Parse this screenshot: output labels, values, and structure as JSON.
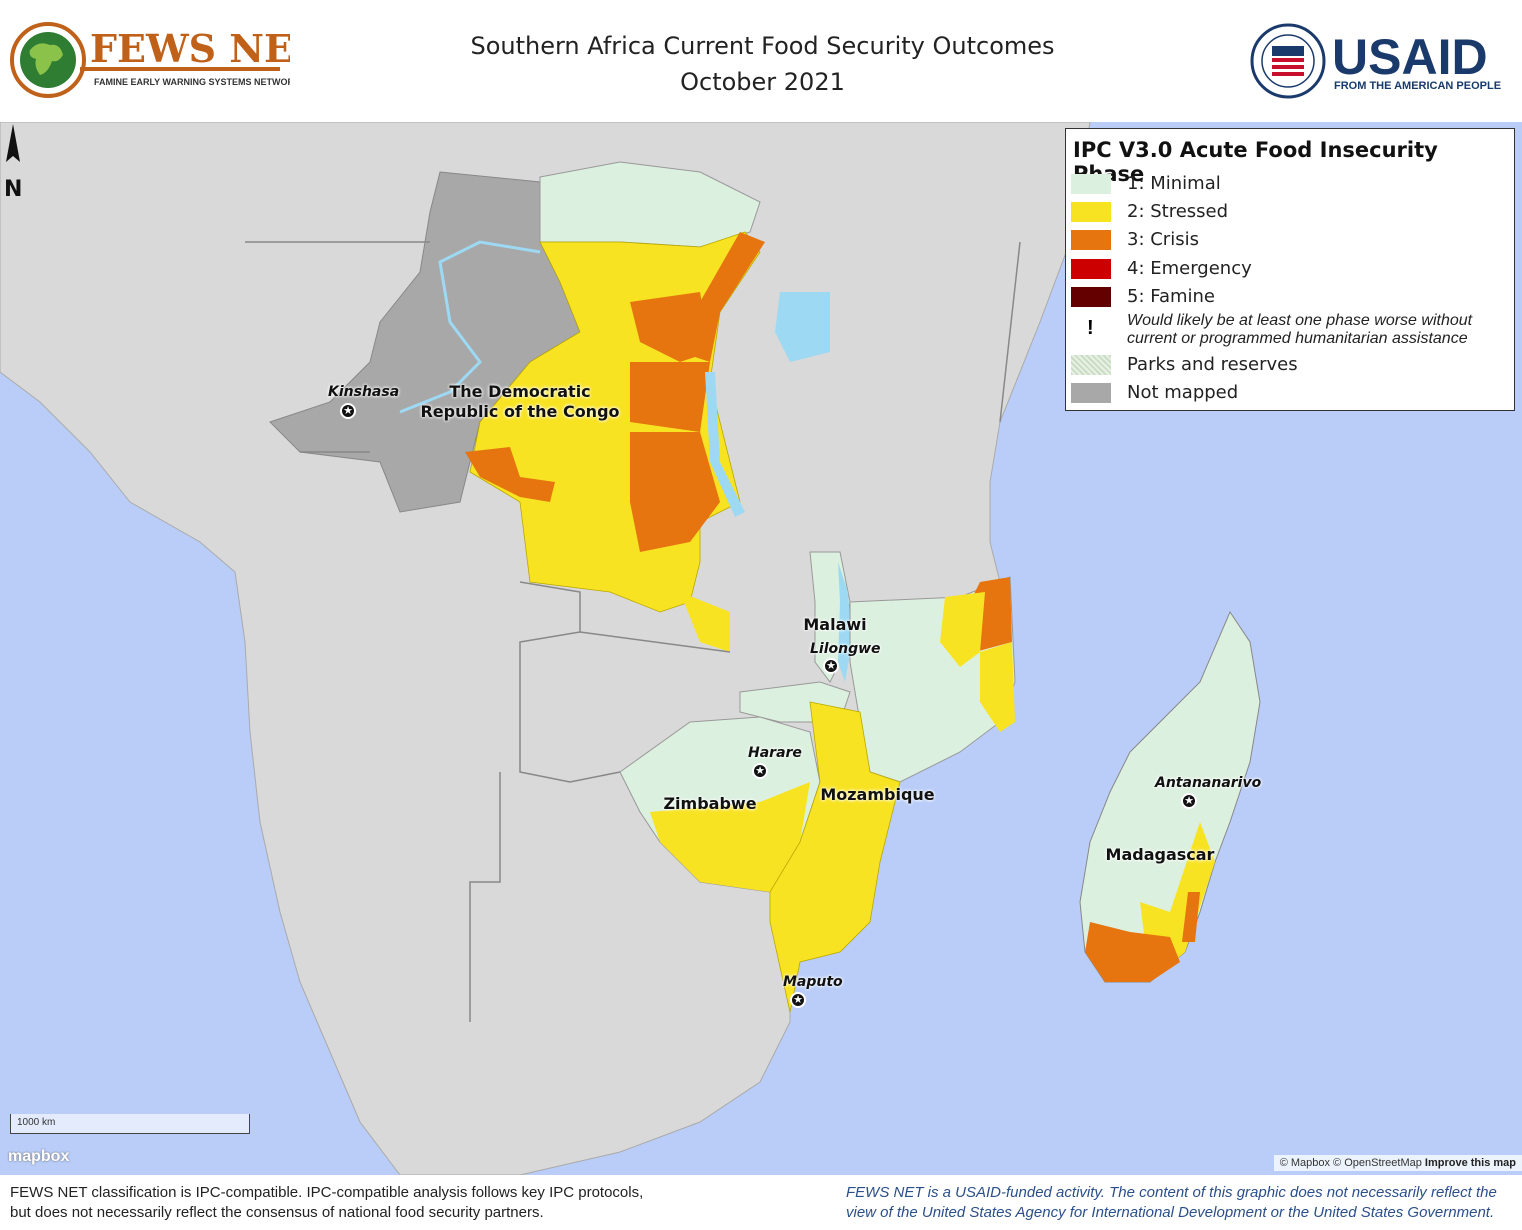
{
  "header": {
    "title_line1": "Southern Africa Current Food Security Outcomes",
    "title_line2": "October 2021",
    "fews_logo_text": "FEWS NET",
    "fews_logo_subtext": "FAMINE EARLY WARNING SYSTEMS NETWORK",
    "usaid_logo_text": "USAID",
    "usaid_tagline": "FROM THE AMERICAN PEOPLE"
  },
  "legend": {
    "title": "IPC V3.0 Acute Food Insecurity Phase",
    "items": [
      {
        "label": "1: Minimal",
        "color": "#dcf0df"
      },
      {
        "label": "2: Stressed",
        "color": "#f8e323"
      },
      {
        "label": "3: Crisis",
        "color": "#e6740f"
      },
      {
        "label": "4: Emergency",
        "color": "#cc0000"
      },
      {
        "label": "5: Famine",
        "color": "#650000"
      }
    ],
    "assistance_symbol": "!",
    "assistance_line1": "Would likely be at least one phase worse without",
    "assistance_line2": "current or programmed humanitarian assistance",
    "parks_label": "Parks and reserves",
    "not_mapped_label": "Not mapped",
    "not_mapped_color": "#a8a8a8"
  },
  "map": {
    "country_labels": {
      "drc_line1": "The Democratic",
      "drc_line2": "Republic of the Congo",
      "malawi": "Malawi",
      "zimbabwe": "Zimbabwe",
      "mozambique": "Mozambique",
      "madagascar": "Madagascar"
    },
    "cities": {
      "kinshasa": "Kinshasa",
      "lilongwe": "Lilongwe",
      "harare": "Harare",
      "antananarivo": "Antananarivo",
      "maputo": "Maputo"
    },
    "scale_label": "1000 km",
    "mapbox_label": "mapbox",
    "attribution": "© Mapbox © OpenStreetMap",
    "improve_link": "Improve this map",
    "north_label": "N",
    "colors": {
      "ocean": "#b9cdf8",
      "land": "#d9d9d9",
      "lake": "#9dd9f3"
    }
  },
  "footer": {
    "left_line1": "FEWS NET classification is IPC-compatible. IPC-compatible analysis follows key IPC protocols,",
    "left_line2": "but does not necessarily reflect the consensus of national food security partners.",
    "right_line1": "FEWS NET is a USAID-funded activity. The content of this graphic does not necessarily reflect the",
    "right_line2": "view of the United States Agency for International Development or the United States Government."
  }
}
